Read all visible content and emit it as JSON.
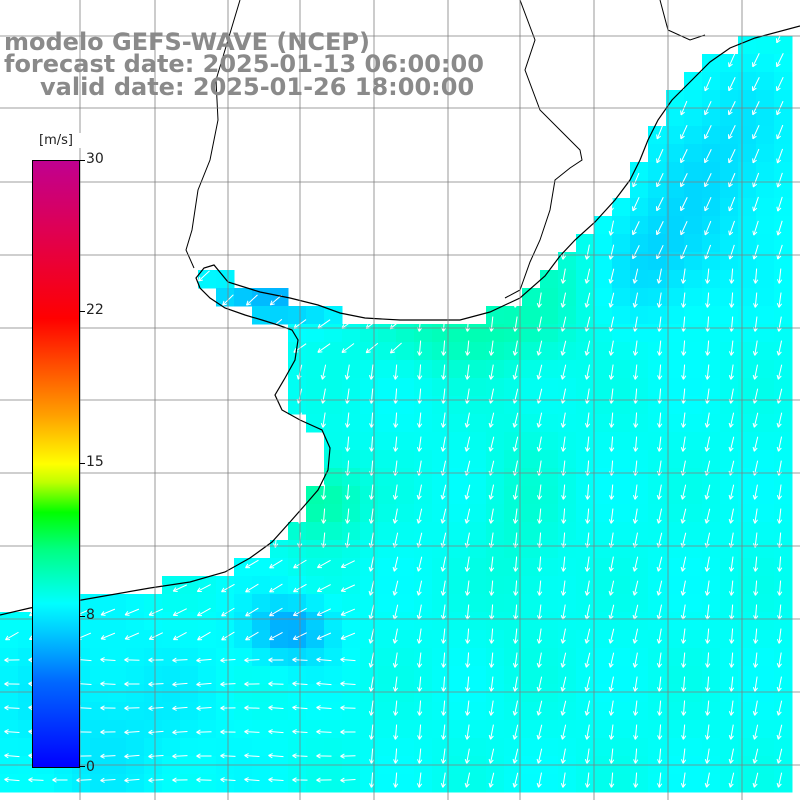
{
  "title": {
    "line1": "modelo GEFS-WAVE (NCEP)",
    "line2": "forecast date: 2025-01-13 06:00:00",
    "line3": "valid date: 2025-01-26 18:00:00"
  },
  "colorbar": {
    "unit": "[m/s]",
    "ticks": [
      "30",
      "22",
      "15",
      "8",
      "0"
    ],
    "min": 0,
    "max": 30,
    "colors": [
      "#0000ff",
      "#0068ff",
      "#00c8ff",
      "#00ffff",
      "#00ff80",
      "#00ff00",
      "#c0ff00",
      "#ffff00",
      "#ffa000",
      "#ff5000",
      "#ff0000",
      "#e00050",
      "#c00090"
    ]
  },
  "map": {
    "field": "wind speed and direction",
    "land_color": "#ffffff",
    "coastline_color": "#000000",
    "grid_color": "#808080"
  }
}
